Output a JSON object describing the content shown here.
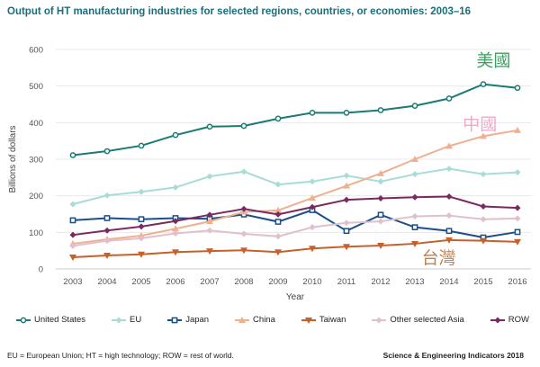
{
  "chart_data": {
    "type": "line",
    "title": "Output of HT manufacturing industries for selected regions, countries, or economies: 2003–16",
    "xlabel": "Year",
    "ylabel": "Billions of dollars",
    "ylim": [
      0,
      600
    ],
    "yticks": [
      0,
      100,
      200,
      300,
      400,
      500,
      600
    ],
    "x": [
      2003,
      2004,
      2005,
      2006,
      2007,
      2008,
      2009,
      2010,
      2011,
      2012,
      2013,
      2014,
      2015,
      2016
    ],
    "grid": "horizontal",
    "legend": "bottom",
    "series": [
      {
        "name": "United States",
        "color": "#1a7a74",
        "marker": "circle",
        "values": [
          311,
          322,
          337,
          366,
          389,
          391,
          411,
          427,
          427,
          434,
          446,
          466,
          505,
          495
        ]
      },
      {
        "name": "EU",
        "color": "#a8dcd6",
        "marker": "diamond",
        "values": [
          177,
          201,
          211,
          223,
          253,
          266,
          231,
          239,
          255,
          239,
          259,
          274,
          259,
          264
        ]
      },
      {
        "name": "Japan",
        "color": "#1b4f8a",
        "marker": "square",
        "values": [
          133,
          139,
          136,
          139,
          137,
          149,
          129,
          161,
          104,
          148,
          114,
          104,
          86,
          101
        ]
      },
      {
        "name": "China",
        "color": "#f0b090",
        "marker": "triangle",
        "values": [
          69,
          81,
          91,
          110,
          130,
          156,
          160,
          194,
          227,
          261,
          300,
          336,
          363,
          379
        ]
      },
      {
        "name": "Taiwan",
        "color": "#c8602a",
        "marker": "triangle-down",
        "values": [
          32,
          37,
          40,
          46,
          49,
          51,
          46,
          56,
          61,
          64,
          69,
          79,
          77,
          74
        ]
      },
      {
        "name": "Other selected Asia",
        "color": "#e0c0cc",
        "marker": "diamond",
        "values": [
          63,
          77,
          84,
          97,
          105,
          96,
          89,
          114,
          126,
          130,
          144,
          146,
          136,
          138
        ]
      },
      {
        "name": "ROW",
        "color": "#7a2a60",
        "marker": "diamond",
        "values": [
          93,
          105,
          116,
          131,
          148,
          164,
          149,
          169,
          189,
          193,
          196,
          198,
          171,
          167
        ]
      }
    ],
    "annotations": [
      {
        "text": "美國",
        "color": "#3aa060",
        "x": 2015.3,
        "y": 555
      },
      {
        "text": "中國",
        "color": "#f0a8c8",
        "x": 2014.9,
        "y": 380
      },
      {
        "text": "台灣",
        "color": "#c08050",
        "x": 2013.7,
        "y": 15
      }
    ]
  },
  "footnote": "EU = European Union; HT = high technology; ROW = rest of world.",
  "source": "Science & Engineering Indicators 2018"
}
